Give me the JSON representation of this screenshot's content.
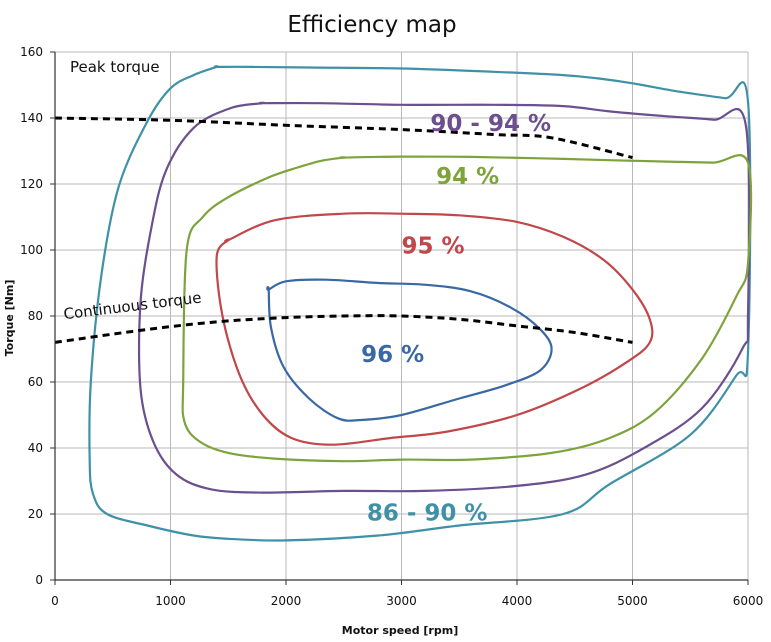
{
  "chart_data": {
    "type": "line",
    "title": "Efficiency map",
    "xlabel": "Motor speed [rpm]",
    "ylabel": "Torque [Nm]",
    "xlim": [
      0,
      6000
    ],
    "ylim": [
      0,
      160
    ],
    "xticks": [
      0,
      1000,
      2000,
      3000,
      4000,
      5000,
      6000
    ],
    "yticks": [
      0,
      20,
      40,
      60,
      80,
      100,
      120,
      140,
      160
    ],
    "grid": true,
    "colors": {
      "c8690": "#3e91a6",
      "c9094": "#6b4f8f",
      "c94": "#7ea33c",
      "c95": "#c0474a",
      "c96": "#3a68a3",
      "curve": "#000000"
    },
    "contours": [
      {
        "label": "86 - 90 %",
        "color": "#3e91a6",
        "x": [
          1400,
          1700,
          2200,
          3000,
          3800,
          4400,
          4700,
          5000,
          5400,
          5800,
          6000,
          6000,
          5900,
          5500,
          4800,
          4400,
          3500,
          2800,
          2000,
          1500,
          1200,
          800,
          450,
          330,
          300,
          310,
          400,
          550,
          800,
          1000,
          1200,
          1400
        ],
        "y": [
          155.5,
          155.5,
          155.3,
          155,
          154,
          153,
          152,
          150.5,
          148,
          146,
          145,
          69,
          62,
          44,
          29,
          20,
          16.5,
          13.5,
          12,
          12.5,
          13.5,
          16.5,
          20,
          26,
          36,
          60,
          92,
          119,
          139,
          149,
          153,
          155.5
        ]
      },
      {
        "label": "90 - 94 %",
        "color": "#6b4f8f",
        "x": [
          1800,
          2300,
          3000,
          3800,
          4400,
          4800,
          5300,
          5700,
          5980,
          6000,
          5950,
          5600,
          5100,
          4600,
          4000,
          3200,
          2500,
          1800,
          1350,
          1050,
          850,
          740,
          740,
          830,
          960,
          1200,
          1520,
          1800
        ],
        "y": [
          144.5,
          144.5,
          144,
          144,
          143.6,
          142,
          140.5,
          139.5,
          138,
          80,
          70,
          52,
          40,
          32,
          28.5,
          27,
          27,
          26.5,
          27.5,
          32,
          42,
          58,
          84,
          106,
          124,
          137,
          143,
          144.5
        ]
      },
      {
        "label": "94 %",
        "color": "#7ea33c",
        "x": [
          2500,
          3000,
          3600,
          4200,
          4800,
          5300,
          5700,
          6000,
          6000,
          5900,
          5600,
          5200,
          4800,
          4300,
          3600,
          3000,
          2500,
          1900,
          1500,
          1250,
          1120,
          1110,
          1140,
          1280,
          1500,
          1850,
          2100,
          2300,
          2500
        ],
        "y": [
          128,
          128.3,
          128.2,
          127.8,
          127.2,
          126.8,
          126.5,
          126.5,
          96,
          86,
          67,
          51,
          43,
          38.5,
          36.5,
          36.5,
          36,
          36.8,
          38.5,
          42,
          48,
          60,
          100,
          110,
          116,
          122,
          125,
          127,
          128
        ]
      },
      {
        "label": "95 %",
        "color": "#c0474a",
        "x": [
          1500,
          1900,
          2500,
          3000,
          3500,
          4000,
          4400,
          4750,
          5000,
          5150,
          5150,
          4950,
          4550,
          4000,
          3400,
          2900,
          2400,
          2050,
          1800,
          1600,
          1450,
          1400,
          1500
        ],
        "y": [
          103,
          109,
          111,
          111,
          110.5,
          108.5,
          104,
          97,
          88,
          79,
          72,
          66,
          58,
          50,
          45,
          43,
          41,
          43,
          50,
          62,
          80,
          98,
          103
        ]
      },
      {
        "label": "96 %",
        "color": "#3a68a3",
        "x": [
          1850,
          2000,
          2350,
          2800,
          3200,
          3600,
          3950,
          4200,
          4300,
          4200,
          3900,
          3500,
          3000,
          2650,
          2450,
          2200,
          1980,
          1870,
          1850
        ],
        "y": [
          88,
          90.5,
          91,
          90,
          89.5,
          87.5,
          82.5,
          76,
          70,
          63.5,
          59,
          55,
          50,
          48.5,
          49,
          55,
          64.5,
          76.5,
          88
        ]
      }
    ],
    "curves": [
      {
        "name": "Peak torque",
        "style": "dashed",
        "x": [
          0,
          1000,
          2000,
          3000,
          3800,
          4300,
          5000
        ],
        "y": [
          140,
          139.3,
          137.8,
          136.5,
          135,
          134,
          128
        ]
      },
      {
        "name": "Continuous torque",
        "style": "dashed",
        "x": [
          0,
          500,
          1000,
          1500,
          2000,
          2500,
          3000,
          3500,
          4000,
          4500,
          5000
        ],
        "y": [
          72,
          74.5,
          76.8,
          78.5,
          79.5,
          80,
          80,
          79,
          77,
          75,
          72
        ]
      }
    ],
    "labels": [
      {
        "text": "Peak torque",
        "x": 130,
        "y": 154,
        "kind": "annot",
        "color": "#111111"
      },
      {
        "text": "Continuous torque",
        "x": 80,
        "y": 79,
        "kind": "annot",
        "rotate": -7,
        "color": "#111111"
      },
      {
        "text": "90 - 94 %",
        "x": 3250,
        "y": 136,
        "kind": "region",
        "color": "#6b4f8f"
      },
      {
        "text": "94 %",
        "x": 3300,
        "y": 120,
        "kind": "region",
        "color": "#7ea33c"
      },
      {
        "text": "95 %",
        "x": 3000,
        "y": 99,
        "kind": "region",
        "color": "#c0474a"
      },
      {
        "text": "96 %",
        "x": 2650,
        "y": 66,
        "kind": "region",
        "color": "#3a68a3"
      },
      {
        "text": "86 - 90 %",
        "x": 2700,
        "y": 18,
        "kind": "region",
        "color": "#3e91a6"
      }
    ]
  }
}
